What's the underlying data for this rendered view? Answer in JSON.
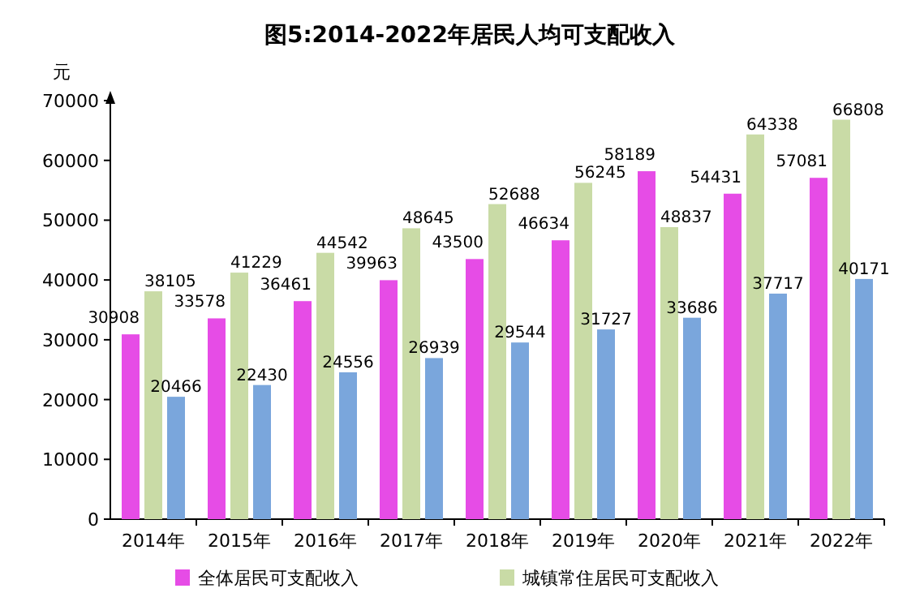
{
  "chart_data": {
    "type": "bar",
    "title": "图5:2014-2022年居民人均可支配收入",
    "ylabel": "元",
    "categories": [
      "2014年",
      "2015年",
      "2016年",
      "2017年",
      "2018年",
      "2019年",
      "2020年",
      "2021年",
      "2022年"
    ],
    "series": [
      {
        "name": "全体居民可支配收入",
        "color": "#e64ce6",
        "values": [
          30908,
          33578,
          36461,
          39963,
          43500,
          46634,
          58189,
          54431,
          57081
        ]
      },
      {
        "name": "城镇常住居民可支配收入",
        "color": "#c9dba6",
        "values": [
          38105,
          41229,
          44542,
          48645,
          52688,
          56245,
          48837,
          64338,
          66808
        ]
      },
      {
        "color": "#7aa6dc",
        "values": [
          20466,
          22430,
          24556,
          26939,
          29544,
          31727,
          33686,
          37717,
          40171
        ]
      }
    ],
    "ylim": [
      0,
      70000
    ],
    "yticks": [
      0,
      10000,
      20000,
      30000,
      40000,
      50000,
      60000,
      70000
    ],
    "data_labels": true,
    "grid": false,
    "legend": "bottom"
  }
}
